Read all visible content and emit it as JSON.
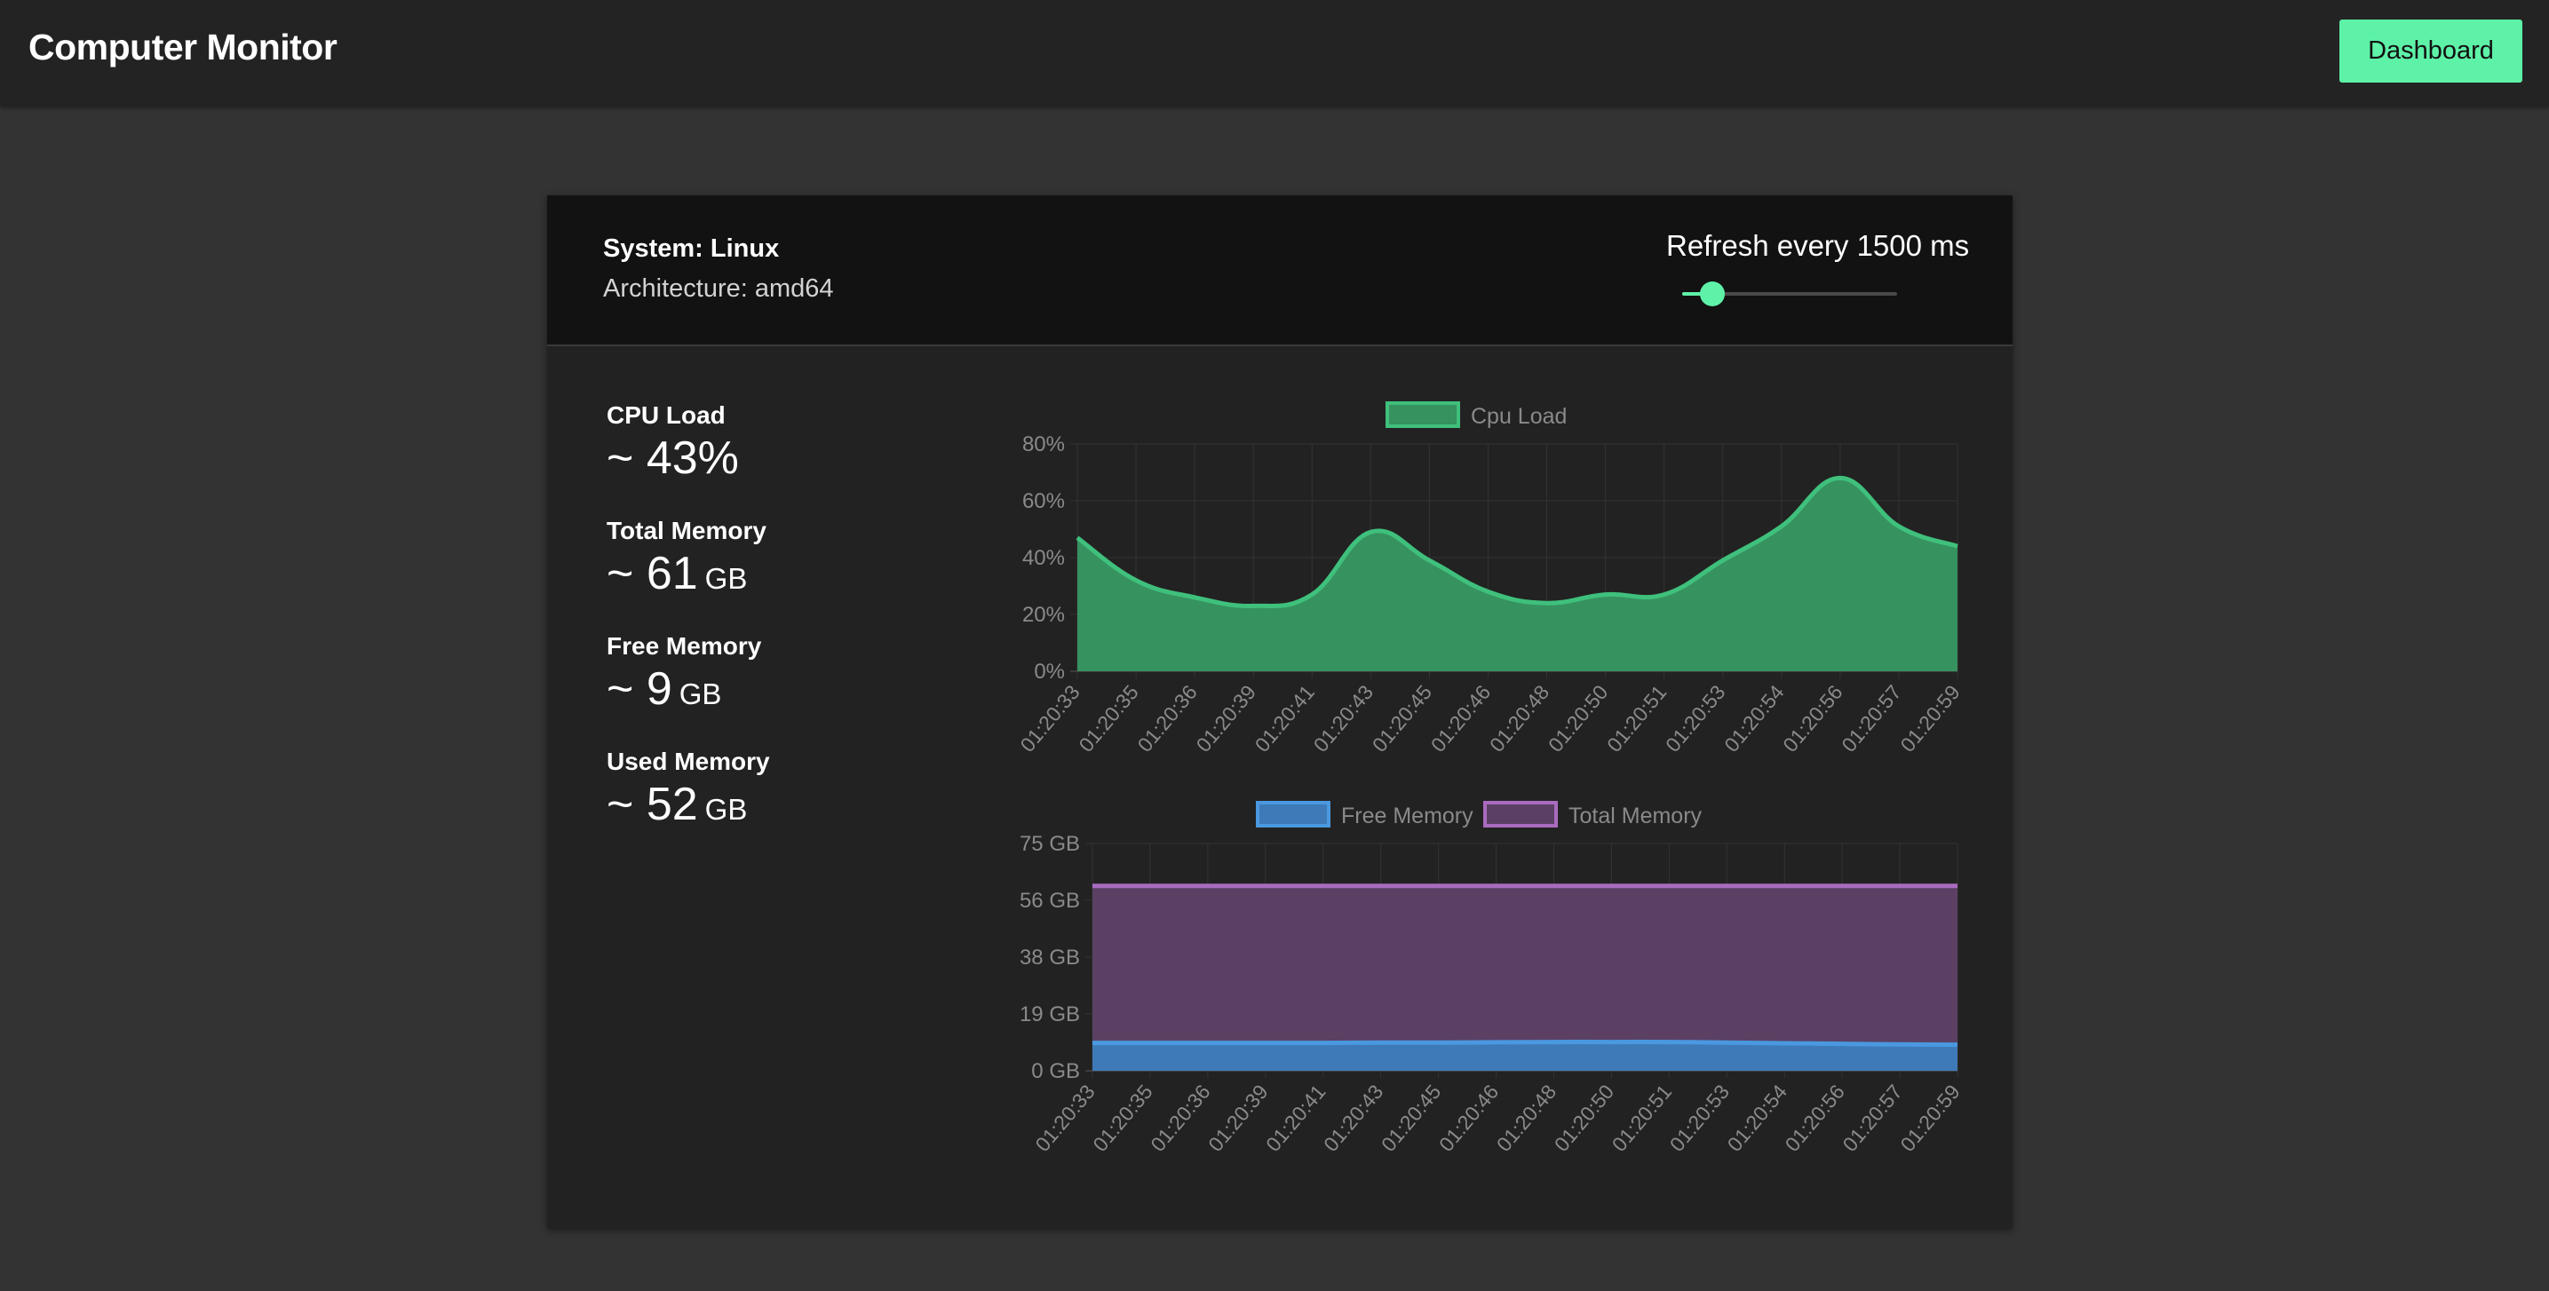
{
  "header": {
    "title": "Computer Monitor",
    "dashboard_button": "Dashboard"
  },
  "system": {
    "name": "System: Linux",
    "architecture": "Architecture: amd64"
  },
  "refresh": {
    "label": "Refresh every 1500 ms",
    "slider_fraction": 0.14
  },
  "stats": [
    {
      "label": "CPU Load",
      "prefix": "~ ",
      "value": "43%",
      "unit": ""
    },
    {
      "label": "Total Memory",
      "prefix": "~ ",
      "value": "61",
      "unit": "GB"
    },
    {
      "label": "Free Memory",
      "prefix": "~ ",
      "value": "9",
      "unit": "GB"
    },
    {
      "label": "Used Memory",
      "prefix": "~ ",
      "value": "52",
      "unit": "GB"
    }
  ],
  "colors": {
    "accent": "#5ef2a8",
    "cpu_fill": "#36925f",
    "cpu_line": "#3fc07c",
    "free_fill": "#3f7ab8",
    "free_line": "#4a98e0",
    "total_fill": "#5b4064",
    "total_line": "#a96bbf"
  },
  "chart_data": [
    {
      "type": "area",
      "title": "",
      "categories": [
        "01:20:33",
        "01:20:35",
        "01:20:36",
        "01:20:39",
        "01:20:41",
        "01:20:43",
        "01:20:45",
        "01:20:46",
        "01:20:48",
        "01:20:50",
        "01:20:51",
        "01:20:53",
        "01:20:54",
        "01:20:56",
        "01:20:57",
        "01:20:59"
      ],
      "series": [
        {
          "name": "Cpu Load",
          "values": [
            47,
            32,
            26,
            23,
            27,
            49,
            39,
            28,
            24,
            27,
            27,
            39,
            51,
            68,
            51,
            44
          ]
        }
      ],
      "yticks": [
        "80%",
        "60%",
        "40%",
        "20%",
        "0%"
      ],
      "ylim": [
        0,
        80
      ],
      "legend": "top",
      "grid": true
    },
    {
      "type": "area",
      "title": "",
      "categories": [
        "01:20:33",
        "01:20:35",
        "01:20:36",
        "01:20:39",
        "01:20:41",
        "01:20:43",
        "01:20:45",
        "01:20:46",
        "01:20:48",
        "01:20:50",
        "01:20:51",
        "01:20:53",
        "01:20:54",
        "01:20:56",
        "01:20:57",
        "01:20:59"
      ],
      "series": [
        {
          "name": "Free Memory",
          "values": [
            9.2,
            9.2,
            9.2,
            9.2,
            9.2,
            9.3,
            9.3,
            9.4,
            9.5,
            9.5,
            9.5,
            9.3,
            9.1,
            8.9,
            8.7,
            8.6
          ]
        },
        {
          "name": "Total Memory",
          "values": [
            61,
            61,
            61,
            61,
            61,
            61,
            61,
            61,
            61,
            61,
            61,
            61,
            61,
            61,
            61,
            61
          ]
        }
      ],
      "yticks": [
        "75 GB",
        "56 GB",
        "38 GB",
        "19 GB",
        "0 GB"
      ],
      "ylim": [
        0,
        75
      ],
      "legend": "top",
      "grid": true
    }
  ]
}
